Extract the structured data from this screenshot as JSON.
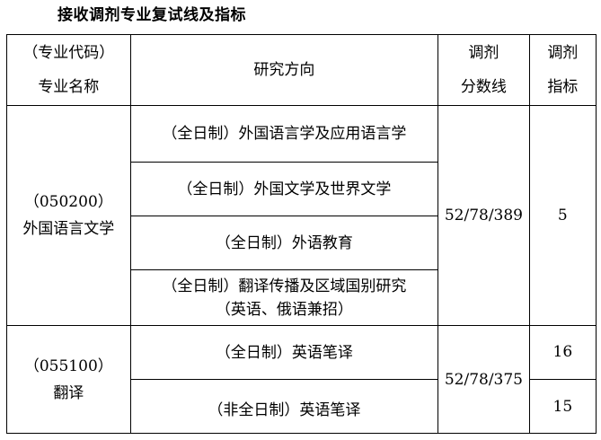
{
  "title": "接收调剂专业复试线及指标",
  "headers": {
    "major_line1": "（专业代码）",
    "major_line2": "专业名称",
    "direction": "研究方向",
    "score_line1": "调剂",
    "score_line2": "分数线",
    "quota_line1": "调剂",
    "quota_line2": "指标"
  },
  "groups": [
    {
      "code": "（050200）",
      "name": "外国语言文学",
      "score": "52/78/389",
      "quota": "5",
      "directions": [
        "（全日制）外国语言学及应用语言学",
        "（全日制）外国文学及世界文学",
        "（全日制）外语教育",
        "（全日制）翻译传播及区域国别研究"
      ],
      "direction_note": "（英语、俄语兼招）"
    },
    {
      "code": "（055100）",
      "name": "翻译",
      "score": "52/78/375",
      "directions": [
        "（全日制）英语笔译",
        "（非全日制）英语笔译"
      ],
      "quotas": [
        "16",
        "15"
      ]
    }
  ]
}
